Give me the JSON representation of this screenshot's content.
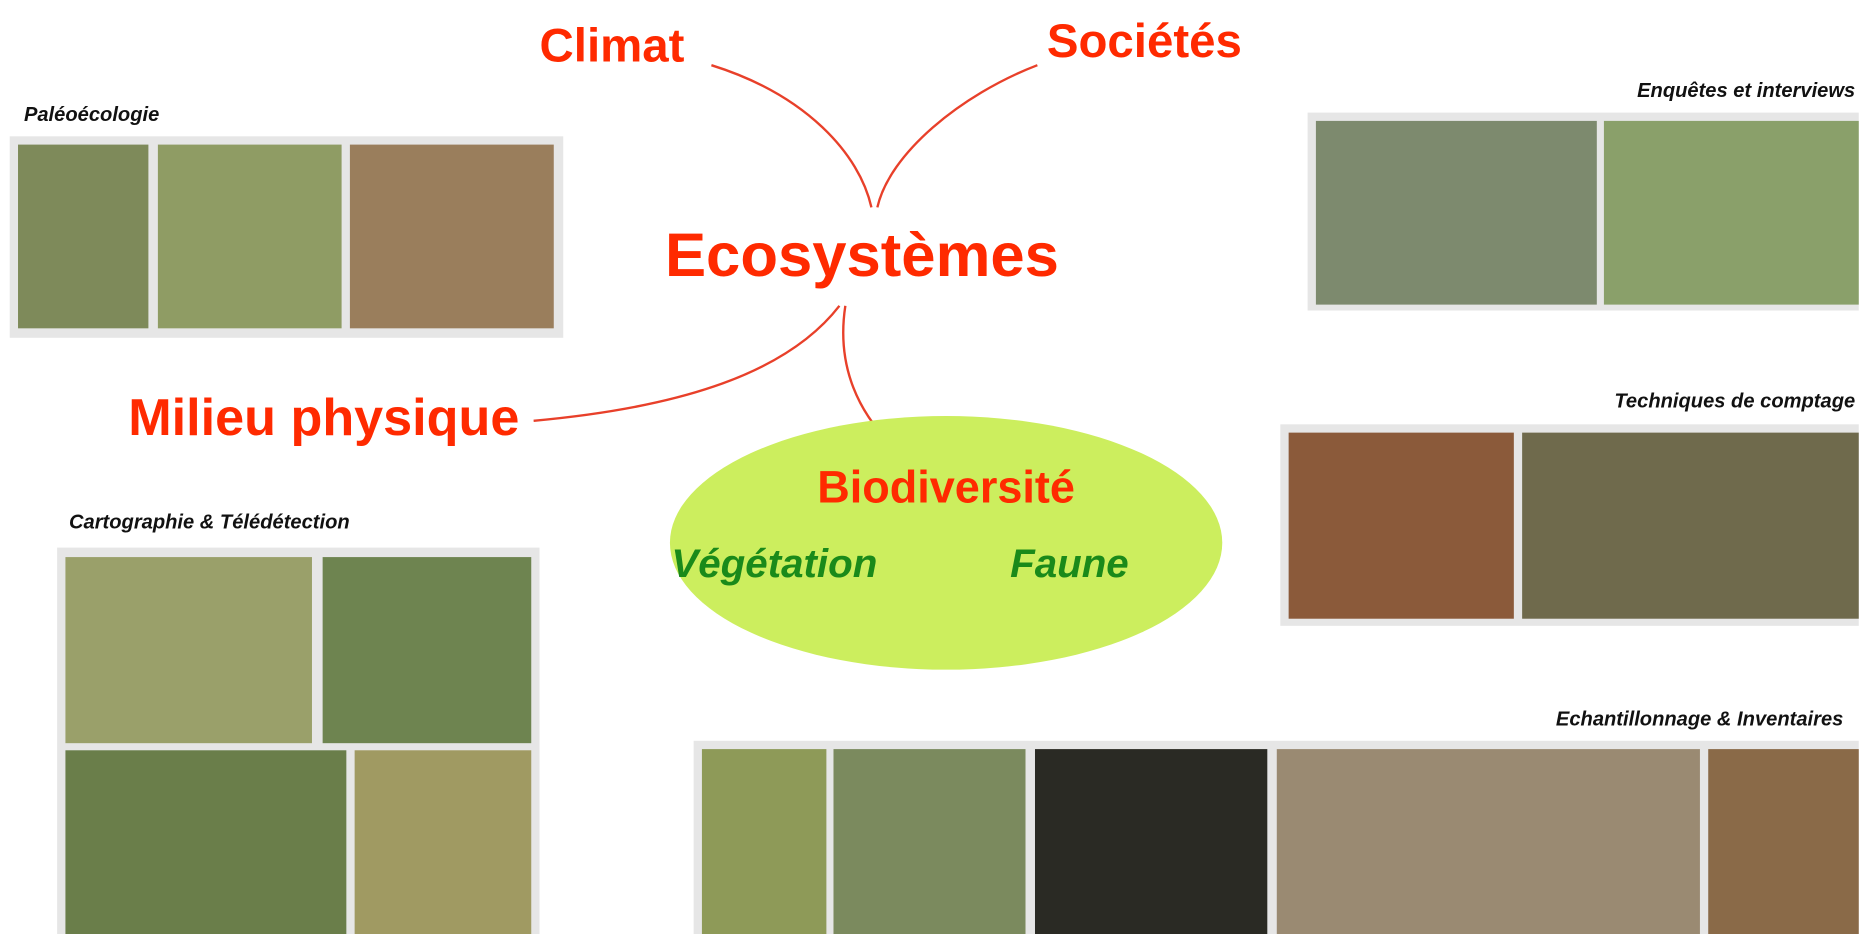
{
  "center": "Ecosystèmes",
  "branches": [
    "Climat",
    "Sociétés",
    "Milieu physique"
  ],
  "biodiversity": {
    "title": "Biodiversité",
    "items": [
      "Végétation",
      "Faune"
    ]
  },
  "photo_groups": {
    "paleo": "Paléoécologie",
    "enquetes": "Enquêtes et interviews",
    "comptage": "Techniques de comptage",
    "carto": "Cartographie & Télédétection",
    "echant": "Echantillonnage & Inventaires"
  }
}
